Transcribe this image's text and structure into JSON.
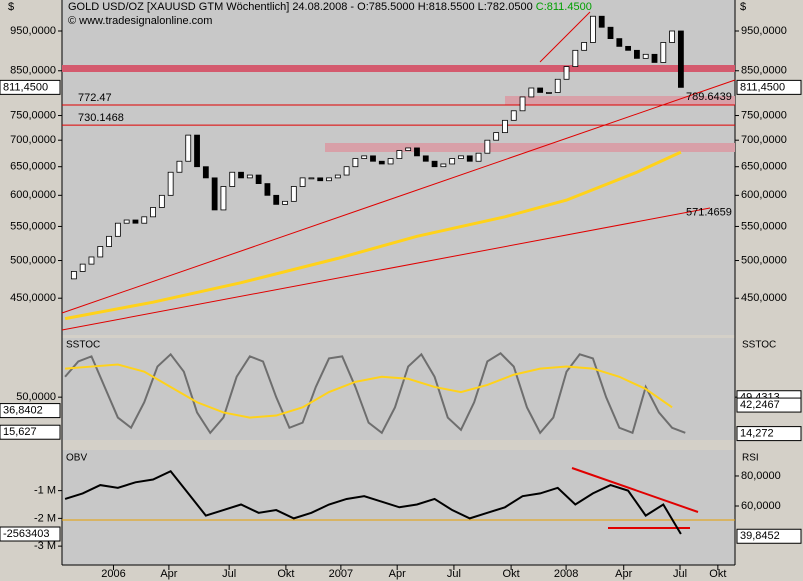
{
  "header": {
    "currency": "$",
    "title": "GOLD USD/OZ [XAUUSD GTM  Wöchentlich] 24.08.2008 - O:785.5000 H:818.5500 L:782.0500 ",
    "close": "C:811.4500",
    "watermark": "© www.tradesignalonline.com"
  },
  "chart_data": [
    {
      "type": "candlestick",
      "x": [
        0,
        2,
        4,
        6,
        8,
        10,
        12,
        14,
        16,
        18,
        20,
        22,
        24,
        26,
        28,
        30,
        32,
        34,
        36,
        38,
        40,
        42,
        44,
        46,
        48,
        50,
        52,
        54,
        56,
        58,
        60,
        62,
        64,
        66,
        68,
        70,
        72,
        74,
        76,
        78,
        80,
        82,
        84,
        86,
        88,
        90,
        92,
        94,
        96,
        98,
        100,
        102,
        104,
        106,
        108,
        110,
        112,
        114,
        116,
        118,
        120,
        122,
        124,
        126,
        128,
        130,
        132,
        134,
        136,
        138,
        140
      ],
      "close": [
        475,
        485,
        495,
        505,
        520,
        535,
        555,
        560,
        555,
        565,
        580,
        600,
        640,
        660,
        710,
        650,
        630,
        576,
        615,
        640,
        630,
        635,
        620,
        600,
        585,
        590,
        615,
        630,
        630,
        625,
        630,
        635,
        650,
        665,
        670,
        660,
        655,
        665,
        680,
        685,
        670,
        660,
        650,
        655,
        665,
        670,
        660,
        675,
        700,
        715,
        740,
        760,
        790,
        810,
        800,
        800,
        830,
        860,
        900,
        920,
        990,
        960,
        930,
        910,
        900,
        880,
        890,
        870,
        920,
        950,
        811.45
      ],
      "xlim": [
        -0.7,
        152.3
      ],
      "ylim": [
        406,
        1036
      ],
      "log_scale": true,
      "yticks": [
        {
          "value": 950,
          "label": "950,0000"
        },
        {
          "value": 850,
          "label": "850,0000"
        },
        {
          "value": 750,
          "label": "750,0000"
        },
        {
          "value": 700,
          "label": "700,0000"
        },
        {
          "value": 650,
          "label": "650,0000"
        },
        {
          "value": 600,
          "label": "600,0000"
        },
        {
          "value": 550,
          "label": "550,0000"
        },
        {
          "value": 500,
          "label": "500,0000"
        },
        {
          "value": 450,
          "label": "450,0000"
        }
      ],
      "xticks": [
        {
          "value": 11,
          "label": "2006"
        },
        {
          "value": 23.6,
          "label": "Apr"
        },
        {
          "value": 37.3,
          "label": "Jul"
        },
        {
          "value": 50.2,
          "label": "Okt"
        },
        {
          "value": 62.7,
          "label": "2007"
        },
        {
          "value": 75.5,
          "label": "Apr"
        },
        {
          "value": 88.4,
          "label": "Jul"
        },
        {
          "value": 101.4,
          "label": "Okt"
        },
        {
          "value": 113.9,
          "label": "2008"
        },
        {
          "value": 127,
          "label": "Apr"
        },
        {
          "value": 139.8,
          "label": "Jul"
        },
        {
          "value": 148.4,
          "label": "Okt"
        }
      ],
      "last_value": {
        "value": 811.45,
        "label": "811,4500"
      },
      "moving_average": {
        "color": "#ffd21a",
        "x": [
          0,
          20,
          40,
          62,
          80,
          100,
          114,
          130,
          140
        ],
        "values": [
          425,
          445,
          470,
          503,
          535,
          565,
          592,
          640,
          677
        ]
      },
      "levels": [
        {
          "value": 772.47,
          "label": "772.47"
        },
        {
          "value": 730.1468,
          "label": "730.1468"
        }
      ],
      "annotations": [
        {
          "value": 789.6439,
          "label": "789.6439"
        },
        {
          "value": 571.4659,
          "label": "571.4659"
        }
      ]
    },
    {
      "type": "line",
      "title": "SSTOC",
      "ylim": [
        8,
        108
      ],
      "yticks": [
        {
          "value": 50,
          "label": "50,0000"
        }
      ],
      "markers_left": [
        {
          "value": 36.8402,
          "label": "36,8402"
        },
        {
          "value": 15.627,
          "label": "15,627"
        }
      ],
      "markers_right": [
        {
          "value": 49.4313,
          "label": "49,4313"
        },
        {
          "value": 42.2467,
          "label": "42,2467"
        },
        {
          "value": 14.272,
          "label": "14,272"
        }
      ],
      "series": [
        {
          "color": "#6e6e6e",
          "x": [
            0,
            3,
            6,
            9,
            12,
            15,
            18,
            21,
            24,
            27,
            30,
            33,
            36,
            39,
            42,
            45,
            48,
            51,
            54,
            57,
            60,
            63,
            66,
            69,
            72,
            75,
            78,
            81,
            84,
            87,
            90,
            93,
            96,
            99,
            102,
            105,
            108,
            111,
            114,
            117,
            120,
            123,
            126,
            129,
            132,
            135,
            138,
            141
          ],
          "values": [
            70,
            85,
            90,
            60,
            30,
            20,
            45,
            80,
            92,
            75,
            35,
            15,
            30,
            70,
            90,
            85,
            50,
            20,
            25,
            60,
            88,
            90,
            60,
            25,
            15,
            40,
            80,
            92,
            70,
            30,
            18,
            45,
            85,
            93,
            80,
            40,
            15,
            30,
            75,
            92,
            88,
            50,
            20,
            15,
            60,
            35,
            20,
            15
          ]
        },
        {
          "color": "#ffd21a",
          "x": [
            0,
            6,
            12,
            18,
            24,
            30,
            36,
            42,
            48,
            54,
            60,
            66,
            72,
            78,
            84,
            90,
            96,
            102,
            108,
            114,
            120,
            126,
            132,
            138
          ],
          "values": [
            78,
            80,
            82,
            75,
            60,
            45,
            35,
            30,
            32,
            40,
            55,
            65,
            70,
            68,
            60,
            55,
            62,
            72,
            78,
            80,
            78,
            70,
            58,
            40
          ]
        }
      ]
    },
    {
      "type": "line",
      "title": "OBV",
      "y2_title": "RSI",
      "ylim": [
        -3680000,
        464000
      ],
      "yticks": [
        {
          "value": -1000000,
          "label": "-1 M"
        },
        {
          "value": -2000000,
          "label": "-2 M"
        },
        {
          "value": -3000000,
          "label": "-3 M"
        }
      ],
      "y2lim": [
        20.7,
        97.3
      ],
      "y2ticks": [
        {
          "value": 80,
          "label": "80,0000"
        },
        {
          "value": 60,
          "label": "60,0000"
        }
      ],
      "markers_left": [
        {
          "value": -2563403,
          "label": "-2563403"
        }
      ],
      "markers_right": [
        {
          "value": 39.8452,
          "label": "39,8452"
        }
      ],
      "series": [
        {
          "color": "#000000",
          "x": [
            0,
            4,
            8,
            12,
            16,
            20,
            24,
            28,
            32,
            36,
            40,
            44,
            48,
            52,
            56,
            60,
            64,
            68,
            72,
            76,
            80,
            84,
            88,
            92,
            96,
            100,
            104,
            108,
            112,
            116,
            120,
            124,
            128,
            132,
            136,
            140
          ],
          "values": [
            -1300000,
            -1100000,
            -800000,
            -900000,
            -700000,
            -600000,
            -300000,
            -1100000,
            -1900000,
            -1700000,
            -1500000,
            -1800000,
            -1700000,
            -2000000,
            -1800000,
            -1500000,
            -1300000,
            -1200000,
            -1400000,
            -1600000,
            -1500000,
            -1300000,
            -1700000,
            -2000000,
            -1800000,
            -1600000,
            -1200000,
            -1100000,
            -900000,
            -1500000,
            -1100000,
            -800000,
            -1000000,
            -1900000,
            -1500000,
            -2563403
          ]
        }
      ]
    }
  ]
}
